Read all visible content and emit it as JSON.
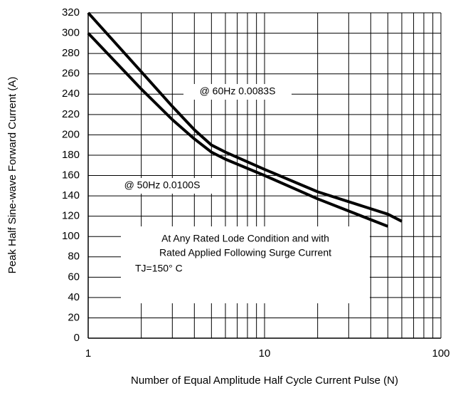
{
  "chart_data": {
    "type": "line",
    "xlabel": "Number of  Equal Amplitude Half Cycle Current Pulse (N)",
    "ylabel": "Peak Half Sine-wave Forward Current (A)",
    "xscale": "log",
    "xlim": [
      1,
      100
    ],
    "xticks": [
      1,
      10,
      100
    ],
    "xminor": [
      2,
      3,
      4,
      5,
      6,
      7,
      8,
      9,
      20,
      30,
      40,
      50,
      60,
      70,
      80,
      90
    ],
    "ylim": [
      0,
      320
    ],
    "yticks": [
      0,
      20,
      40,
      60,
      80,
      100,
      120,
      140,
      160,
      180,
      200,
      220,
      240,
      260,
      280,
      300,
      320
    ],
    "grid": true,
    "series": [
      {
        "color": "#000000",
        "x": [
          1,
          2,
          3,
          4,
          5,
          6,
          10,
          20,
          50,
          60
        ],
        "values": [
          320,
          262,
          228,
          205,
          190,
          183,
          166,
          144,
          122,
          115
        ]
      },
      {
        "color": "#000000",
        "x": [
          1,
          2,
          3,
          4,
          5,
          6,
          10,
          20,
          50
        ],
        "values": [
          300,
          245,
          215,
          196,
          183,
          176,
          160,
          137,
          110
        ]
      }
    ],
    "annotations": [
      "@ 60Hz 0.0083S",
      "@ 50Hz 0.0100S",
      "At  Any Rated Lode Condition and with",
      "Rated Applied Following Surge Current",
      "TJ=150°  C"
    ]
  }
}
